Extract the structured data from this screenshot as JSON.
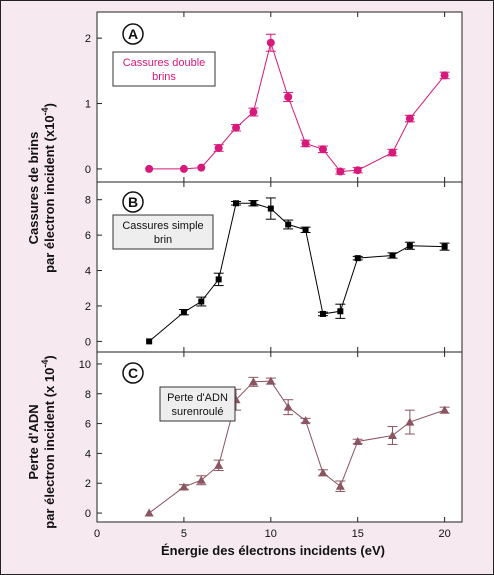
{
  "chart_data": [
    {
      "panel": "A",
      "type": "line",
      "annotation": [
        "Cassures double",
        "brins"
      ],
      "color": "#d6197a",
      "marker": "circle",
      "label_box_fill": "#ffffff",
      "x": [
        3,
        5,
        6,
        7,
        8,
        9,
        10,
        11,
        12,
        13,
        14,
        15,
        17,
        18,
        20
      ],
      "y": [
        0.0,
        0.0,
        0.02,
        0.32,
        0.63,
        0.87,
        1.93,
        1.1,
        0.39,
        0.3,
        -0.04,
        -0.02,
        0.25,
        0.77,
        1.43
      ],
      "err": [
        0,
        0,
        0,
        0.05,
        0.05,
        0.06,
        0.13,
        0.07,
        0.05,
        0.05,
        0.04,
        0.04,
        0.05,
        0.05,
        0.05
      ],
      "ylim": [
        -0.2,
        2.4
      ],
      "yticks": [
        0,
        1,
        2
      ]
    },
    {
      "panel": "B",
      "type": "line",
      "annotation": [
        "Cassures simple",
        "brin"
      ],
      "color": "#000000",
      "marker": "square",
      "label_box_fill": "#eeeeee",
      "x": [
        3,
        5,
        6,
        7,
        8,
        9,
        10,
        11,
        12,
        13,
        14,
        15,
        17,
        18,
        20
      ],
      "y": [
        0.0,
        1.65,
        2.25,
        3.5,
        7.8,
        7.8,
        7.5,
        6.6,
        6.3,
        1.55,
        1.7,
        4.7,
        4.85,
        5.4,
        5.35
      ],
      "err": [
        0,
        0.15,
        0.25,
        0.35,
        0.1,
        0.15,
        0.6,
        0.25,
        0.15,
        0.1,
        0.4,
        0.1,
        0.15,
        0.2,
        0.2
      ],
      "ylim": [
        -0.6,
        9.0
      ],
      "yticks": [
        0,
        2,
        4,
        6,
        8
      ]
    },
    {
      "panel": "C",
      "type": "line",
      "annotation": [
        "Perte d'ADN",
        "surenroulé"
      ],
      "color": "#8a5460",
      "marker": "triangle",
      "label_box_fill": "#eeeeee",
      "x": [
        3,
        5,
        6,
        7,
        8,
        9,
        10,
        11,
        12,
        13,
        14,
        15,
        17,
        18,
        20
      ],
      "y": [
        0.0,
        1.75,
        2.2,
        3.2,
        7.6,
        8.8,
        8.85,
        7.1,
        6.2,
        2.7,
        1.8,
        4.8,
        5.2,
        6.1,
        6.9
      ],
      "err": [
        0,
        0.15,
        0.3,
        0.35,
        0.7,
        0.3,
        0.2,
        0.5,
        0.15,
        0.2,
        0.35,
        0.15,
        0.6,
        0.8,
        0.2
      ],
      "ylim": [
        -0.6,
        10.8
      ],
      "yticks": [
        0,
        2,
        4,
        6,
        8,
        10
      ]
    }
  ],
  "axes": {
    "xlim": [
      0,
      21
    ],
    "xticks": [
      0,
      5,
      10,
      15,
      20
    ],
    "xlabel": "Énergie des électrons incidents (eV)",
    "ylabel_top": {
      "line1": "Cassures de brins",
      "line2_main": "par électron incident (x10",
      "line2_sup": "-4",
      "line2_end": ")"
    },
    "ylabel_bottom": {
      "line1": "Perte d'ADN",
      "line2_main": "par électron incident (x 10",
      "line2_sup": "-4",
      "line2_end": ")"
    }
  }
}
